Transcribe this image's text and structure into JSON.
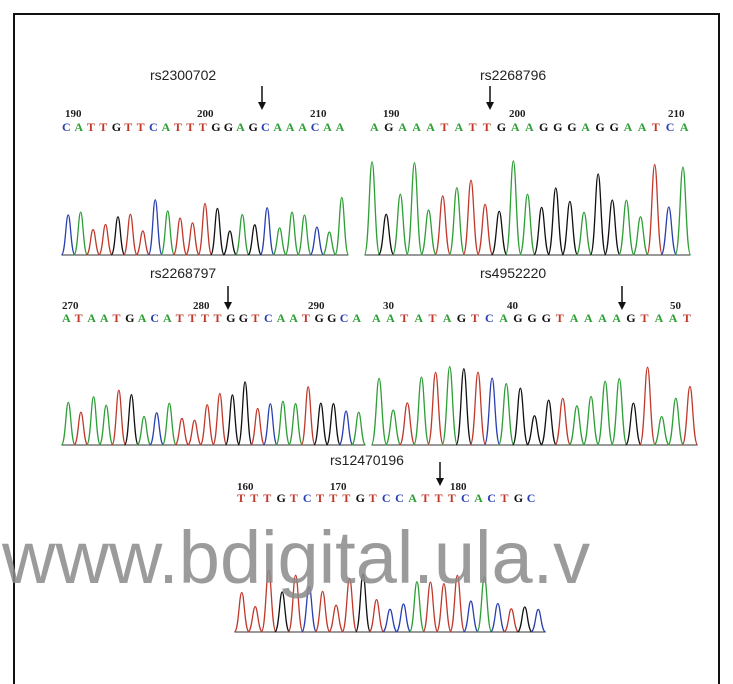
{
  "panels": [
    {
      "label": "rs2300702",
      "positions": [
        190,
        200,
        210
      ],
      "sequence": "CATTGTTCATTTGGAGCAAACAA"
    },
    {
      "label": "rs2268796",
      "positions": [
        190,
        200,
        210
      ],
      "sequence": "AGAAATATTGAAGGGAGGAATCA"
    },
    {
      "label": "rs2268797",
      "positions": [
        270,
        280,
        290
      ],
      "sequence": "ATAATGACATTTTGGTCAATGGCA"
    },
    {
      "label": "rs4952220",
      "positions": [
        30,
        40,
        50
      ],
      "sequence": "AATATAGTCAGGGTAAAAGTAAT"
    },
    {
      "label": "rs12470196",
      "positions": [
        160,
        170,
        180
      ],
      "sequence": "TTTGTCTTTGTCCATTTCACTGC"
    }
  ],
  "watermark": "www.bdigital.ula.v"
}
